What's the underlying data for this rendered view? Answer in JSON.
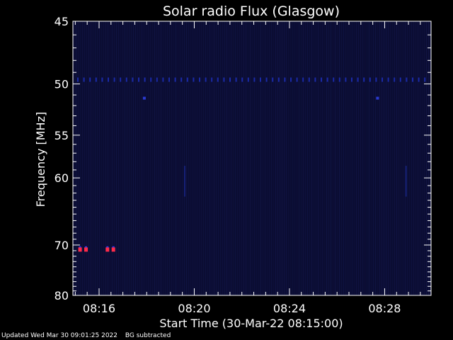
{
  "chart_data": {
    "type": "heatmap",
    "title": "Solar radio Flux (Glasgow)",
    "xlabel": "Start Time (30-Mar-22 08:15:00)",
    "ylabel": "Frequency [MHz]",
    "x_ticks": [
      "08:16",
      "08:20",
      "08:24",
      "08:28"
    ],
    "x_tick_values_min": [
      1,
      5,
      9,
      13
    ],
    "xlim_min": [
      -0.1,
      14.95
    ],
    "y_ticks": [
      45,
      50,
      55,
      60,
      70,
      80
    ],
    "ylim": [
      45,
      80
    ],
    "y_scale": "reciprocal",
    "grid": false,
    "colors": {
      "background": "#000000",
      "spectrum_bg": "#0b0d33",
      "band_50mhz": "#1a2aa8",
      "burst": "#ff2a4a",
      "axes": "#ffffff"
    },
    "features": {
      "interference_line_mhz": 49.6,
      "interference_dots_mhz": 51.3,
      "interference_dots_at_min": [
        2.9,
        12.7
      ],
      "burst_freq_mhz": 70.8,
      "burst_at_min": [
        0.2,
        0.45,
        1.35,
        1.6
      ],
      "faint_streaks_at_min": [
        4.6,
        13.9
      ]
    }
  },
  "footer": {
    "updated": "Updated Wed Mar 30 09:01:25 2022",
    "note": "BG subtracted"
  }
}
